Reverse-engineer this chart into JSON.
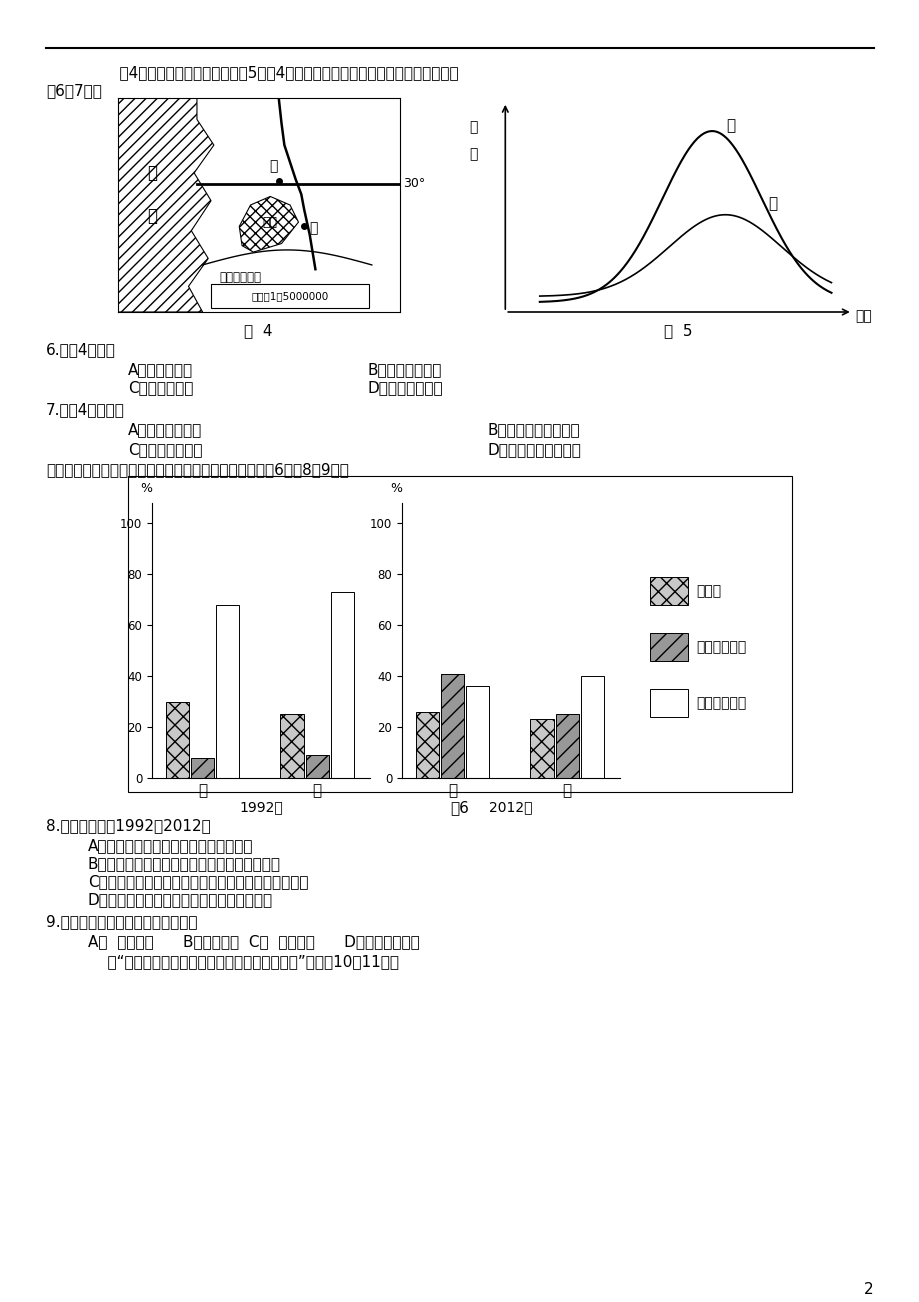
{
  "page_num": "2",
  "intro_line1": "    图4所示区域陆地地势平坦，图5为图4中河流甲、乙两处的年径流量曲线。读图回",
  "intro_line2": "卷6～7题。",
  "fig4_label": "图  4",
  "fig5_label": "图  5",
  "fig6_label": "图6",
  "q6_text": "6.　图4地区：",
  "q6_a": "A．地处北半球",
  "q6_b": "B．沿岸暖流经过",
  "q6_c": "C．受信风控制",
  "q6_d": "D．此时降水较多",
  "q7_text": "7.　图4中的河流",
  "q7_a": "A．西北流向东南",
  "q7_b": "B．此时接受湖泊补给",
  "q7_c": "C．秋冬发生凌汛",
  "q7_d": "D．流量季节变化较小",
  "q7_intro": "下图为我国两城市不同年份的人口分布构成示意图，读图6回哈8～9题。",
  "fig6_1992_jia": [
    30,
    8,
    68
  ],
  "fig6_1992_yi": [
    25,
    9,
    73
  ],
  "fig6_2012_jia": [
    26,
    41,
    36
  ],
  "fig6_2012_yi": [
    23,
    25,
    40
  ],
  "q8_text": "8.　图中显示，1992～2012年",
  "q8_a": "A．甲、乙两城市老城区人口均有所减少",
  "q8_b": "B．甲城市老城区人口比重变化幅度比乙城市小",
  "q8_c": "C．甲城市近郊和新城区人口比重变化幅度比乙城市大",
  "q8_d": "D．甲、乙两城市远郊区县人口数量比较接近",
  "q9_text": "9.　甲、乙两城市处于城市化进程的",
  "q9_abc": "A．  初期阶段      B．中期阶段  C．  后期阶段",
  "q9_d": "D．逆城市化阶段",
  "q9_tail": "    读“某区域海平面等压线（单位：百帕）分布图”，回畇10～11题。",
  "bg_color": "#ffffff",
  "text_color": "#000000"
}
